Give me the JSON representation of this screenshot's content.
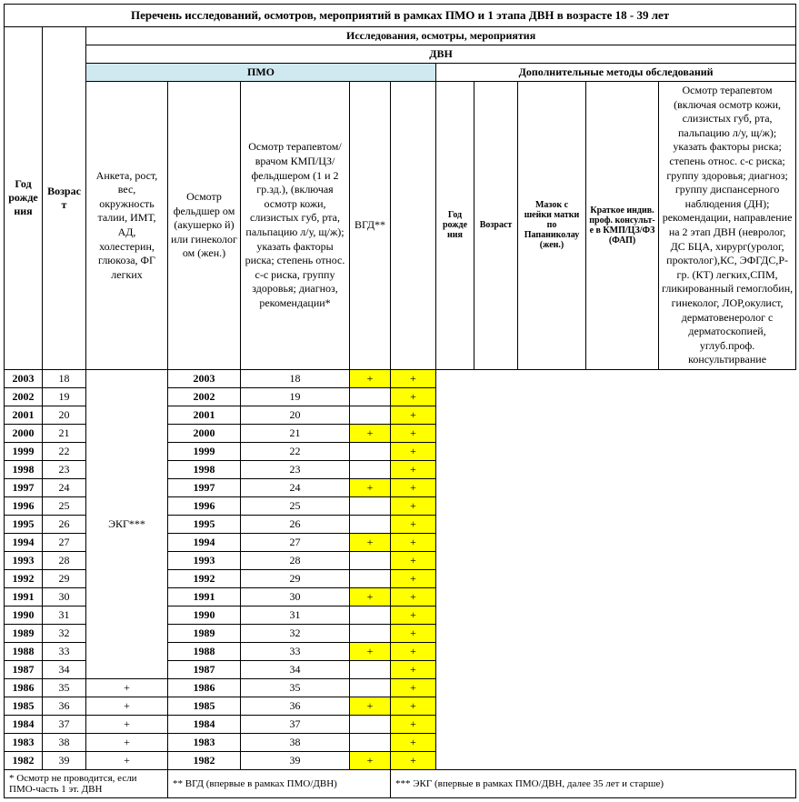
{
  "title": "Перечень исследований, осмотров, мероприятий в рамках ПМО и 1 этапа ДВН в возрасте 18 - 39 лет",
  "headers": {
    "research": "Исследования, осмотры, мероприятия",
    "dvn": "ДВН",
    "pmo": "ПМО",
    "addl": "Дополнительные методы обследований",
    "year": "Год рожде ния",
    "age": "Возраст",
    "year2": "Год рожде ния",
    "age2": "Возраст",
    "smear": "Мазок с шейки матки по Папаниколау (жен.)",
    "consult": "Краткое индив. проф. консульт-е в КМП/ЦЗ/ФЗ (ФАП)"
  },
  "col_text": {
    "anket": "Анкета, рост, вес, окружность талии, ИМТ, АД, холестерин, глюкоза, ФГ легких",
    "feldsher": "Осмотр фельдшер ом (акушерко й) или гинеколог ом (жен.)",
    "therapist": "Осмотр терапевтом/ врачом КМП/ЦЗ/ фельдшером (1 и 2 гр.зд.), (включая осмотр кожи, слизистых губ, рта, пальпацию л/у, щ/ж); указать факторы риска; степень  относ. с-с риска, группу здоровья; диагноз, рекомендации*",
    "vgd": "ВГД**",
    "ekg": "ЭКГ***",
    "therapist2": "Осмотр терапевтом (включая осмотр кожи, слизистых губ, рта, пальпацию л/у, щ/ж);        указать факторы риска; степень относ. с-с риска;   группу здоровья; диагноз; группу диспансерного наблюдения (ДН); рекомендации, направление на 2 этап ДВН (невролог, ДС БЦА, хирург(уролог, проктолог),КС, ЭФГДС,Р-гр. (КТ) легких,СПМ, гликированный гемоглобин, гинеколог, ЛОР,окулист, дерматовенеролог с дерматоскопией, углуб.проф. консультирвание"
  },
  "rows": [
    {
      "year": "2003",
      "age": "18",
      "ekg_plus": false,
      "smear": true,
      "consult": true
    },
    {
      "year": "2002",
      "age": "19",
      "ekg_plus": false,
      "smear": false,
      "consult": true
    },
    {
      "year": "2001",
      "age": "20",
      "ekg_plus": false,
      "smear": false,
      "consult": true
    },
    {
      "year": "2000",
      "age": "21",
      "ekg_plus": false,
      "smear": true,
      "consult": true
    },
    {
      "year": "1999",
      "age": "22",
      "ekg_plus": false,
      "smear": false,
      "consult": true
    },
    {
      "year": "1998",
      "age": "23",
      "ekg_plus": false,
      "smear": false,
      "consult": true
    },
    {
      "year": "1997",
      "age": "24",
      "ekg_plus": false,
      "smear": true,
      "consult": true
    },
    {
      "year": "1996",
      "age": "25",
      "ekg_plus": false,
      "smear": false,
      "consult": true
    },
    {
      "year": "1995",
      "age": "26",
      "ekg_plus": false,
      "smear": false,
      "consult": true
    },
    {
      "year": "1994",
      "age": "27",
      "ekg_plus": false,
      "smear": true,
      "consult": true
    },
    {
      "year": "1993",
      "age": "28",
      "ekg_plus": false,
      "smear": false,
      "consult": true
    },
    {
      "year": "1992",
      "age": "29",
      "ekg_plus": false,
      "smear": false,
      "consult": true
    },
    {
      "year": "1991",
      "age": "30",
      "ekg_plus": false,
      "smear": true,
      "consult": true
    },
    {
      "year": "1990",
      "age": "31",
      "ekg_plus": false,
      "smear": false,
      "consult": true
    },
    {
      "year": "1989",
      "age": "32",
      "ekg_plus": false,
      "smear": false,
      "consult": true
    },
    {
      "year": "1988",
      "age": "33",
      "ekg_plus": false,
      "smear": true,
      "consult": true
    },
    {
      "year": "1987",
      "age": "34",
      "ekg_plus": false,
      "smear": false,
      "consult": true
    },
    {
      "year": "1986",
      "age": "35",
      "ekg_plus": true,
      "smear": false,
      "consult": true
    },
    {
      "year": "1985",
      "age": "36",
      "ekg_plus": true,
      "smear": true,
      "consult": true
    },
    {
      "year": "1984",
      "age": "37",
      "ekg_plus": true,
      "smear": false,
      "consult": true
    },
    {
      "year": "1983",
      "age": "38",
      "ekg_plus": true,
      "smear": false,
      "consult": true
    },
    {
      "year": "1982",
      "age": "39",
      "ekg_plus": true,
      "smear": true,
      "consult": true
    }
  ],
  "footnotes": {
    "f1": "* Осмотр не проводится, если ПМО-часть 1 эт. ДВН",
    "f2": "** ВГД (впервые в рамках ПМО/ДВН)",
    "f3": "*** ЭКГ (впервые в рамках ПМО/ДВН, далее 35 лет и старше)"
  },
  "plus": "+",
  "colors": {
    "highlight": "#ffff00",
    "pmo_bg": "#d0e8f0"
  }
}
